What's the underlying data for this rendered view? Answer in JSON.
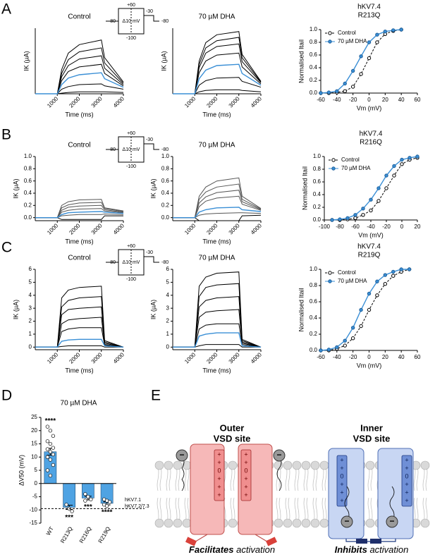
{
  "panels": [
    "A",
    "B",
    "C",
    "D",
    "E"
  ],
  "protocol": {
    "labels": [
      "+60",
      "-80",
      "Δ10 mV",
      "-100",
      "-30",
      "-80"
    ]
  },
  "chart_data": [
    {
      "type": "line",
      "title": "Control",
      "xlabel": "Time (ms)",
      "ylabel": "IK (µA)",
      "x": [
        0,
        1000,
        1200,
        1500,
        2000,
        3000,
        3150,
        4000
      ],
      "xlim": [
        0,
        4000
      ],
      "xticks": [
        1000,
        2000,
        3000,
        4000
      ],
      "ylim": [
        0,
        10
      ],
      "series": [
        {
          "color": "#000000",
          "values": [
            0,
            0,
            3.7,
            6.2,
            7.5,
            8.2,
            5.5,
            1.8
          ]
        },
        {
          "color": "#000000",
          "values": [
            0,
            0,
            3.1,
            5.2,
            6.4,
            7,
            4.7,
            1.6
          ]
        },
        {
          "color": "#000000",
          "values": [
            0,
            0,
            2.6,
            4.3,
            5.3,
            5.8,
            3.9,
            1.4
          ]
        },
        {
          "color": "#000000",
          "values": [
            0,
            0,
            2,
            3.4,
            4.1,
            4.5,
            3.1,
            1.2
          ]
        },
        {
          "color": "#000000",
          "values": [
            0,
            0,
            0.7,
            1.1,
            1.4,
            1.5,
            1.2,
            0.7
          ]
        },
        {
          "color": "#000000",
          "values": [
            0,
            0,
            0.1,
            0.2,
            0.3,
            0.3,
            0.3,
            0.2
          ]
        },
        {
          "color": "#3a8fd6",
          "values": [
            0,
            0,
            1.4,
            2.4,
            2.9,
            3.2,
            2.3,
            1
          ]
        }
      ]
    },
    {
      "type": "line",
      "title": "70 µM DHA",
      "xlabel": "Time (ms)",
      "ylabel": "IK (µA)",
      "x": [
        0,
        1000,
        1200,
        1500,
        2000,
        3000,
        3150,
        4000
      ],
      "xlim": [
        0,
        4000
      ],
      "xticks": [
        1000,
        2000,
        3000,
        4000
      ],
      "ylim": [
        0,
        10
      ],
      "series": [
        {
          "color": "#000000",
          "values": [
            0,
            0,
            5,
            7.8,
            9,
            9.5,
            6,
            1.9
          ]
        },
        {
          "color": "#000000",
          "values": [
            0,
            0,
            4.5,
            7,
            8.1,
            8.6,
            5.5,
            1.8
          ]
        },
        {
          "color": "#000000",
          "values": [
            0,
            0,
            4,
            6.2,
            7.2,
            7.6,
            4.9,
            1.7
          ]
        },
        {
          "color": "#000000",
          "values": [
            0,
            0,
            3.2,
            5,
            5.9,
            6.2,
            4.1,
            1.5
          ]
        },
        {
          "color": "#000000",
          "values": [
            0,
            0,
            1.3,
            2,
            2.4,
            2.5,
            1.9,
            1
          ]
        },
        {
          "color": "#000000",
          "values": [
            0,
            0,
            0.3,
            0.5,
            0.6,
            0.6,
            0.5,
            0.3
          ]
        },
        {
          "color": "#3a8fd6",
          "values": [
            0,
            0,
            2.3,
            3.6,
            4.3,
            4.5,
            3.1,
            1.3
          ]
        }
      ]
    },
    {
      "type": "line",
      "title": "hKV7.4",
      "subtitle": "R213Q",
      "xlabel": "Vm (mV)",
      "ylabel": "Normalised Itail",
      "x": [
        -60,
        -50,
        -40,
        -30,
        -20,
        -10,
        0,
        10,
        20,
        30,
        40
      ],
      "xlim": [
        -60,
        60
      ],
      "xticks": [
        -60,
        -40,
        -20,
        0,
        20,
        40,
        60
      ],
      "ylim": [
        0,
        1
      ],
      "yticks": [
        {
          "value": 0,
          "label": "0.0"
        },
        {
          "value": 0.2,
          "label": "0.2"
        },
        {
          "value": 0.4,
          "label": "0.4"
        },
        {
          "value": 0.6,
          "label": "0.6"
        },
        {
          "value": 0.8,
          "label": "0.8"
        },
        {
          "value": 1,
          "label": "1.0"
        }
      ],
      "markers": true,
      "legend": "upper left",
      "series": [
        {
          "name": "Control",
          "color": "#000000",
          "dashed": true,
          "values": [
            0,
            0,
            0.01,
            0.03,
            0.1,
            0.3,
            0.55,
            0.8,
            0.93,
            0.98,
            1
          ]
        },
        {
          "name": "70 µM DHA",
          "color": "#3a8fd6",
          "dashed": false,
          "values": [
            0,
            0.01,
            0.03,
            0.15,
            0.35,
            0.58,
            0.8,
            0.92,
            0.97,
            0.99,
            1
          ]
        }
      ]
    },
    {
      "type": "line",
      "title": "Control",
      "xlabel": "Time (ms)",
      "ylabel": "IK (µA)",
      "x": [
        0,
        1000,
        1200,
        1500,
        2000,
        3000,
        3150,
        4000
      ],
      "xlim": [
        0,
        4000
      ],
      "xticks": [
        1000,
        2000,
        3000,
        4000
      ],
      "ylim": [
        -0.05,
        1
      ],
      "yticks": [
        {
          "value": 0,
          "label": "0.0"
        },
        {
          "value": 0.2,
          "label": "0.2"
        },
        {
          "value": 0.4,
          "label": "0.4"
        },
        {
          "value": 0.6,
          "label": "0.6"
        },
        {
          "value": 0.8,
          "label": "0.8"
        },
        {
          "value": 1,
          "label": "1.0"
        }
      ],
      "series": [
        {
          "color": "#555555",
          "values": [
            0,
            0,
            0.2,
            0.26,
            0.29,
            0.3,
            0.16,
            0.11
          ]
        },
        {
          "color": "#555555",
          "values": [
            0,
            0,
            0.16,
            0.21,
            0.24,
            0.25,
            0.15,
            0.1
          ]
        },
        {
          "color": "#555555",
          "values": [
            0,
            0,
            0.12,
            0.17,
            0.19,
            0.2,
            0.13,
            0.09
          ]
        },
        {
          "color": "#555555",
          "values": [
            0,
            0,
            0.09,
            0.12,
            0.14,
            0.15,
            0.11,
            0.08
          ]
        },
        {
          "color": "#555555",
          "values": [
            0,
            0,
            0.03,
            0.04,
            0.05,
            0.05,
            0.06,
            0.05
          ]
        },
        {
          "color": "#000000",
          "values": [
            0,
            0,
            -0.03,
            -0.03,
            -0.03,
            -0.03,
            0.03,
            0.03
          ]
        },
        {
          "color": "#3a8fd6",
          "values": [
            0,
            0,
            0.05,
            0.08,
            0.09,
            0.1,
            0.09,
            0.07
          ]
        }
      ]
    },
    {
      "type": "line",
      "title": "70 µM DHA",
      "xlabel": "Time (ms)",
      "ylabel": "IK (µA)",
      "x": [
        0,
        1000,
        1200,
        1500,
        2000,
        3000,
        3150,
        4000
      ],
      "xlim": [
        0,
        4000
      ],
      "xticks": [
        1000,
        2000,
        3000,
        4000
      ],
      "ylim": [
        -0.05,
        1
      ],
      "yticks": [
        {
          "value": 0,
          "label": "0.0"
        },
        {
          "value": 0.2,
          "label": "0.2"
        },
        {
          "value": 0.4,
          "label": "0.4"
        },
        {
          "value": 0.6,
          "label": "0.6"
        },
        {
          "value": 0.8,
          "label": "0.8"
        },
        {
          "value": 1,
          "label": "1.0"
        }
      ],
      "series": [
        {
          "color": "#555555",
          "values": [
            0,
            0,
            0.35,
            0.5,
            0.6,
            0.65,
            0.35,
            0.15
          ]
        },
        {
          "color": "#555555",
          "values": [
            0,
            0,
            0.3,
            0.42,
            0.5,
            0.55,
            0.3,
            0.14
          ]
        },
        {
          "color": "#555555",
          "values": [
            0,
            0,
            0.24,
            0.34,
            0.41,
            0.45,
            0.26,
            0.13
          ]
        },
        {
          "color": "#555555",
          "values": [
            0,
            0,
            0.18,
            0.27,
            0.32,
            0.35,
            0.22,
            0.12
          ]
        },
        {
          "color": "#555555",
          "values": [
            0,
            0,
            0.04,
            0.06,
            0.07,
            0.08,
            0.08,
            0.07
          ]
        },
        {
          "color": "#000000",
          "values": [
            0,
            0,
            -0.05,
            -0.05,
            -0.05,
            -0.05,
            0.03,
            0.04
          ]
        },
        {
          "color": "#3a8fd6",
          "values": [
            0,
            0,
            0.09,
            0.13,
            0.16,
            0.17,
            0.13,
            0.1
          ]
        }
      ]
    },
    {
      "type": "line",
      "title": "hKV7.4",
      "subtitle": "R216Q",
      "xlabel": "Vm (mV)",
      "ylabel": "Normalised Itail",
      "x": [
        -90,
        -80,
        -70,
        -60,
        -50,
        -40,
        -30,
        -20,
        -10,
        0,
        10,
        20
      ],
      "xlim": [
        -100,
        20
      ],
      "xticks": [
        -100,
        -80,
        -60,
        -40,
        -20,
        0,
        20
      ],
      "ylim": [
        0,
        1
      ],
      "yticks": [
        {
          "value": 0,
          "label": "0.0"
        },
        {
          "value": 0.2,
          "label": "0.2"
        },
        {
          "value": 0.4,
          "label": "0.4"
        },
        {
          "value": 0.6,
          "label": "0.6"
        },
        {
          "value": 0.8,
          "label": "0.8"
        },
        {
          "value": 1,
          "label": "1.0"
        }
      ],
      "markers": true,
      "legend": "upper left",
      "series": [
        {
          "name": "Control",
          "color": "#000000",
          "dashed": true,
          "values": [
            0,
            0,
            0.01,
            0.03,
            0.08,
            0.15,
            0.3,
            0.5,
            0.7,
            0.88,
            0.95,
            0.98
          ]
        },
        {
          "name": "70 µM DHA",
          "color": "#3a8fd6",
          "dashed": false,
          "values": [
            0,
            0.01,
            0.03,
            0.08,
            0.18,
            0.32,
            0.5,
            0.7,
            0.85,
            0.95,
            0.98,
            1
          ]
        }
      ]
    },
    {
      "type": "line",
      "title": "Control",
      "xlabel": "Time (ms)",
      "ylabel": "IK (µA)",
      "x": [
        0,
        1000,
        1200,
        1500,
        2000,
        3000,
        3150,
        4000
      ],
      "xlim": [
        0,
        4000
      ],
      "xticks": [
        1000,
        2000,
        3000,
        4000
      ],
      "ylim": [
        -0.2,
        6
      ],
      "yticks": [
        0,
        1,
        2,
        3,
        4,
        5,
        6
      ],
      "series": [
        {
          "color": "#000000",
          "values": [
            0,
            0,
            3.8,
            4.4,
            4.6,
            4.7,
            0.5,
            0
          ]
        },
        {
          "color": "#000000",
          "values": [
            0,
            0,
            3.1,
            3.6,
            3.8,
            3.9,
            0.4,
            0
          ]
        },
        {
          "color": "#000000",
          "values": [
            0,
            0,
            2.5,
            2.9,
            3,
            3.1,
            0.3,
            0
          ]
        },
        {
          "color": "#000000",
          "values": [
            0,
            0,
            1.8,
            2.1,
            2.2,
            2.3,
            0.2,
            0
          ]
        },
        {
          "color": "#000000",
          "values": [
            0,
            0,
            1.2,
            1.4,
            1.5,
            1.5,
            0.15,
            0
          ]
        },
        {
          "color": "#000000",
          "values": [
            0,
            0,
            0.05,
            0.1,
            0.1,
            0.1,
            0,
            0
          ]
        },
        {
          "color": "#3a8fd6",
          "values": [
            0,
            0,
            0.45,
            0.55,
            0.6,
            0.6,
            0.1,
            0
          ]
        }
      ]
    },
    {
      "type": "line",
      "title": "70 µM DHA",
      "xlabel": "Time (ms)",
      "ylabel": "IK (µA)",
      "x": [
        0,
        1000,
        1200,
        1500,
        2000,
        3000,
        3150,
        4000
      ],
      "xlim": [
        0,
        4000
      ],
      "xticks": [
        1000,
        2000,
        3000,
        4000
      ],
      "ylim": [
        -0.2,
        6
      ],
      "yticks": [
        0,
        1,
        2,
        3,
        4,
        5,
        6
      ],
      "series": [
        {
          "color": "#000000",
          "values": [
            0,
            0,
            4.7,
            5.4,
            5.7,
            5.8,
            0.6,
            0
          ]
        },
        {
          "color": "#000000",
          "values": [
            0,
            0,
            3.9,
            4.6,
            4.8,
            4.9,
            0.5,
            0
          ]
        },
        {
          "color": "#000000",
          "values": [
            0,
            0,
            3.1,
            3.6,
            3.8,
            3.9,
            0.4,
            0
          ]
        },
        {
          "color": "#000000",
          "values": [
            0,
            0,
            2.3,
            2.7,
            2.8,
            2.9,
            0.3,
            0
          ]
        },
        {
          "color": "#000000",
          "values": [
            0,
            0,
            1.4,
            1.7,
            1.8,
            1.8,
            0.2,
            0
          ]
        },
        {
          "color": "#000000",
          "values": [
            0,
            0,
            0.1,
            0.2,
            0.2,
            0.2,
            0,
            0
          ]
        },
        {
          "color": "#3a8fd6",
          "values": [
            0,
            0,
            0.85,
            1,
            1.1,
            1.1,
            0.1,
            0
          ]
        }
      ]
    },
    {
      "type": "line",
      "title": "hKV7.4",
      "subtitle": "R219Q",
      "xlabel": "Vm (mV)",
      "ylabel": "Normalised Itail",
      "x": [
        -60,
        -50,
        -40,
        -30,
        -20,
        -10,
        0,
        10,
        20,
        30,
        40,
        50
      ],
      "xlim": [
        -60,
        60
      ],
      "xticks": [
        -60,
        -40,
        -20,
        0,
        20,
        40,
        60
      ],
      "ylim": [
        0,
        1
      ],
      "yticks": [
        {
          "value": 0,
          "label": "0.0"
        },
        {
          "value": 0.2,
          "label": "0.2"
        },
        {
          "value": 0.4,
          "label": "0.4"
        },
        {
          "value": 0.6,
          "label": "0.6"
        },
        {
          "value": 0.8,
          "label": "0.8"
        },
        {
          "value": 1,
          "label": "1.0"
        }
      ],
      "markers": true,
      "legend": "upper left",
      "series": [
        {
          "name": "Control",
          "color": "#000000",
          "dashed": true,
          "values": [
            0,
            0,
            0.02,
            0.06,
            0.15,
            0.3,
            0.5,
            0.68,
            0.82,
            0.92,
            0.97,
            1
          ]
        },
        {
          "name": "70 µM DHA",
          "color": "#3a8fd6",
          "dashed": false,
          "values": [
            0,
            0.01,
            0.04,
            0.12,
            0.28,
            0.5,
            0.7,
            0.85,
            0.93,
            0.97,
            1,
            1
          ]
        }
      ]
    },
    {
      "type": "bar",
      "title": "70 µM DHA",
      "ylabel": "ΔV50 (mV)",
      "color": "#4fa3e3",
      "categories": [
        "WT",
        "R213Q",
        "R216Q",
        "R219Q"
      ],
      "values": [
        12,
        -9,
        -5.5,
        -7.5
      ],
      "errors": [
        1.3,
        0.8,
        0.7,
        0.6
      ],
      "significance": [
        "****",
        "***",
        "***",
        "****"
      ],
      "points": [
        [
          21.5,
          20,
          18,
          16,
          15,
          13.5,
          13,
          12,
          11,
          10,
          9,
          7,
          5,
          3
        ],
        [
          -8,
          -9.5,
          -10.5
        ],
        [
          -4,
          -5,
          -6,
          -6.5
        ],
        [
          -6,
          -6.5,
          -7,
          -8,
          -8.5
        ]
      ],
      "reference_line": {
        "value": -9.5,
        "labels": [
          "hKV7.1",
          "hKV7.2/7.3"
        ]
      },
      "ylim": [
        -15,
        25
      ],
      "yticks": [
        -15,
        -10,
        -5,
        0,
        5,
        10,
        15,
        20,
        25
      ]
    }
  ],
  "diagram": {
    "outer": [
      "Outer",
      "VSD site"
    ],
    "inner": [
      "Inner",
      "VSD site"
    ],
    "charges": [
      "+",
      "+",
      "0",
      "+",
      "+",
      "+"
    ],
    "ligand": "−",
    "caption_left": {
      "emphasis": "Facilitates",
      "rest": " activation"
    },
    "caption_right": {
      "emphasis": "Inhibits",
      "rest": " activation"
    }
  }
}
